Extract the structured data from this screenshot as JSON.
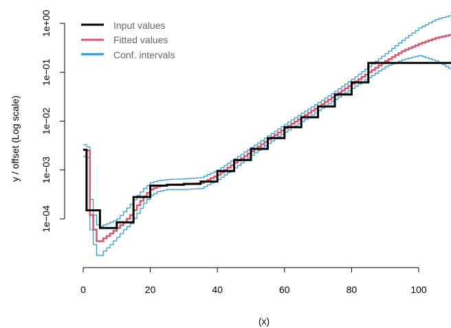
{
  "chart_data": {
    "type": "line",
    "title": "",
    "xlabel": "(x)",
    "ylabel": "y / offset   (Log scale)",
    "y_scale": "log10",
    "xlim": [
      0,
      110
    ],
    "ylim": [
      3e-05,
      1.15
    ],
    "x_ticks": [
      0,
      20,
      40,
      60,
      80,
      100
    ],
    "x_tick_labels": [
      "0",
      "20",
      "40",
      "60",
      "80",
      "100"
    ],
    "y_ticks": [
      0.0001,
      0.001,
      0.01,
      0.1,
      1
    ],
    "y_tick_labels": [
      "1e−04",
      "1e−03",
      "1e−02",
      "1e−01",
      "1e+00"
    ],
    "grid": false,
    "legend_position": "top-left",
    "colors": {
      "input": "#000000",
      "fitted": "#DF536B",
      "conf": "#2297E6"
    },
    "input_values": {
      "step": "post",
      "x": [
        0,
        1,
        5,
        10,
        15,
        20,
        25,
        30,
        35,
        40,
        45,
        50,
        55,
        60,
        65,
        70,
        75,
        80,
        85,
        110
      ],
      "y": [
        0.0026,
        0.00015,
        6.5e-05,
        8.5e-05,
        0.00028,
        0.00048,
        0.0005,
        0.00052,
        0.00058,
        0.00095,
        0.0016,
        0.0027,
        0.0045,
        0.0075,
        0.012,
        0.02,
        0.035,
        0.062,
        0.155,
        0.155
      ]
    },
    "fitted_values": {
      "x": [
        0,
        1,
        2,
        3,
        4,
        5,
        6,
        8,
        10,
        12,
        14,
        16,
        18,
        20,
        22,
        25,
        30,
        35,
        40,
        45,
        50,
        55,
        60,
        65,
        70,
        75,
        80,
        85,
        90,
        95,
        100,
        105,
        110
      ],
      "y": [
        0.0026,
        0.0025,
        0.00012,
        6e-05,
        3.5e-05,
        3.5e-05,
        4e-05,
        5e-05,
        6.5e-05,
        8.5e-05,
        0.00012,
        0.00019,
        0.00029,
        0.0004,
        0.00046,
        0.0005,
        0.00051,
        0.00054,
        0.0008,
        0.0014,
        0.0024,
        0.0042,
        0.0072,
        0.012,
        0.02,
        0.034,
        0.058,
        0.1,
        0.17,
        0.27,
        0.38,
        0.5,
        0.6
      ]
    },
    "conf_upper": {
      "x": [
        0,
        1,
        2,
        3,
        4,
        5,
        6,
        8,
        10,
        12,
        14,
        16,
        18,
        20,
        22,
        25,
        30,
        35,
        40,
        45,
        50,
        55,
        60,
        65,
        70,
        75,
        80,
        85,
        90,
        95,
        100,
        105,
        110
      ],
      "y": [
        0.0033,
        0.003,
        0.00025,
        0.00012,
        7.5e-05,
        7e-05,
        7.5e-05,
        8.5e-05,
        0.0001,
        0.00014,
        0.0002,
        0.0003,
        0.00042,
        0.00055,
        0.0006,
        0.00064,
        0.00066,
        0.0007,
        0.001,
        0.0017,
        0.0029,
        0.005,
        0.0086,
        0.0145,
        0.024,
        0.041,
        0.072,
        0.13,
        0.24,
        0.45,
        0.8,
        1.2,
        1.5
      ]
    },
    "conf_lower": {
      "x": [
        0,
        1,
        2,
        3,
        4,
        5,
        6,
        8,
        10,
        12,
        14,
        16,
        18,
        20,
        22,
        25,
        30,
        35,
        40,
        45,
        50,
        55,
        60,
        65,
        70,
        75,
        80,
        85,
        90,
        95,
        100,
        105,
        110
      ],
      "y": [
        0.0019,
        0.0018,
        6e-05,
        3e-05,
        1.8e-05,
        1.8e-05,
        2.2e-05,
        3e-05,
        4.2e-05,
        6e-05,
        8e-05,
        0.00013,
        0.00021,
        0.0003,
        0.00036,
        0.0004,
        0.0004,
        0.00042,
        0.00064,
        0.0011,
        0.002,
        0.0035,
        0.006,
        0.0098,
        0.0165,
        0.028,
        0.047,
        0.078,
        0.13,
        0.18,
        0.22,
        0.17,
        0.11
      ]
    },
    "series": [
      {
        "name": "Input values",
        "key": "input_values",
        "color_key": "input",
        "width": 3
      },
      {
        "name": "Fitted values",
        "key": "fitted_values",
        "color_key": "fitted",
        "width": 2.5
      },
      {
        "name": "Conf. intervals",
        "key": "conf_upper",
        "color_key": "conf",
        "width": 1.2
      }
    ]
  }
}
